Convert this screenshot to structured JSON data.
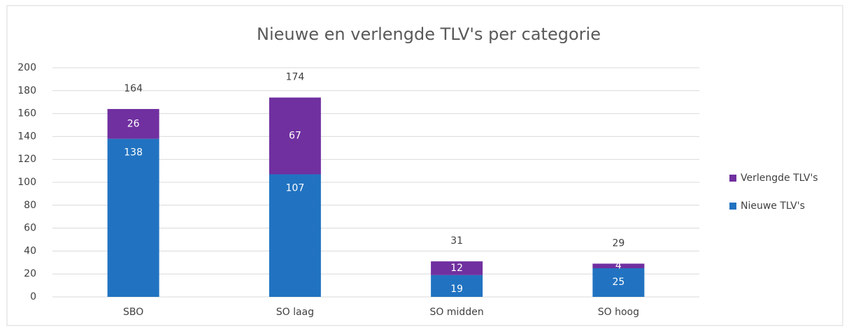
{
  "chart_data": {
    "type": "stacked_bar",
    "title": "Nieuwe en verlengde TLV's per categorie",
    "categories": [
      "SBO",
      "SO laag",
      "SO midden",
      "SO hoog"
    ],
    "series": [
      {
        "name": "Nieuwe TLV's",
        "color": "#2173c1",
        "values": [
          138,
          107,
          19,
          25
        ]
      },
      {
        "name": "Verlengde TLV's",
        "color": "#7030a0",
        "values": [
          26,
          67,
          12,
          4
        ]
      }
    ],
    "totals": [
      164,
      174,
      31,
      29
    ],
    "ylim": [
      0,
      200
    ],
    "yticks": [
      0,
      20,
      40,
      60,
      80,
      100,
      120,
      140,
      160,
      180,
      200
    ],
    "grid": true,
    "legend": "right"
  }
}
